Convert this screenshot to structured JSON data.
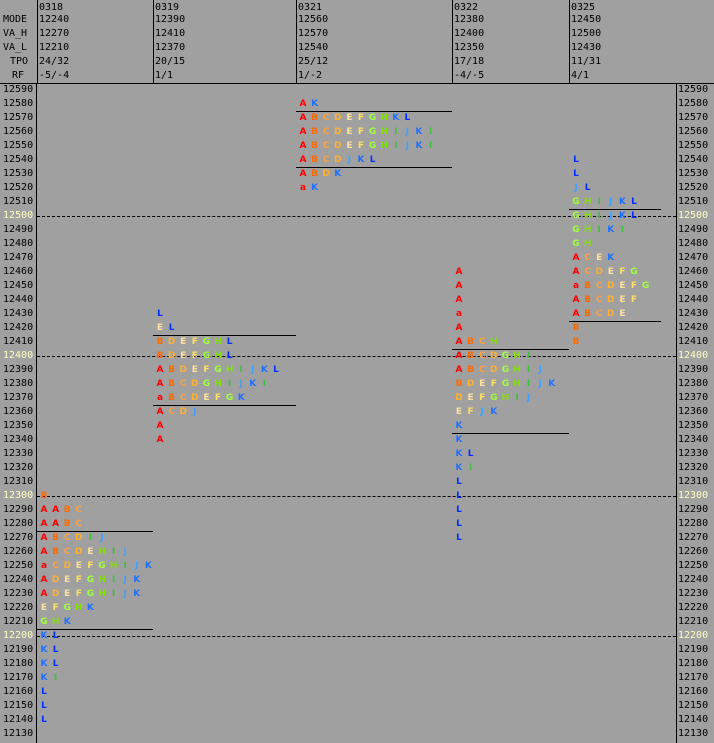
{
  "header": {
    "row_labels": [
      "MODE",
      "VA_H",
      "VA_L",
      "TPO",
      "RF"
    ],
    "sessions": [
      {
        "date": "0318",
        "mode": "12240",
        "va_h": "12270",
        "va_l": "12210",
        "tpo": "24/32",
        "rf": "-5/-4"
      },
      {
        "date": "0319",
        "mode": "12390",
        "va_h": "12410",
        "va_l": "12370",
        "tpo": "20/15",
        "rf": "1/1"
      },
      {
        "date": "0321",
        "mode": "12560",
        "va_h": "12570",
        "va_l": "12540",
        "tpo": "25/12",
        "rf": "1/-2"
      },
      {
        "date": "0322",
        "mode": "12380",
        "va_h": "12400",
        "va_l": "12350",
        "tpo": "17/18",
        "rf": "-4/-5"
      },
      {
        "date": "0325",
        "mode": "12450",
        "va_h": "12500",
        "va_l": "12430",
        "tpo": "11/31",
        "rf": "4/1"
      }
    ]
  },
  "prices": [
    "12590",
    "12580",
    "12570",
    "12560",
    "12550",
    "12540",
    "12530",
    "12520",
    "12510",
    "12500",
    "12490",
    "12480",
    "12470",
    "12460",
    "12450",
    "12440",
    "12430",
    "12420",
    "12410",
    "12400",
    "12390",
    "12380",
    "12370",
    "12360",
    "12350",
    "12340",
    "12330",
    "12320",
    "12310",
    "12300",
    "12290",
    "12280",
    "12270",
    "12260",
    "12250",
    "12240",
    "12230",
    "12220",
    "12210",
    "12200",
    "12190",
    "12180",
    "12170",
    "12160",
    "12150",
    "12140",
    "12130"
  ],
  "major_prices": [
    "12500",
    "12400",
    "12300",
    "12200"
  ],
  "colors": {
    "A": "#ff0000",
    "a": "#ff0000",
    "B": "#ff6a00",
    "C": "#ffa040",
    "D": "#ffb030",
    "E": "#ffe0a0",
    "F": "#ffe060",
    "G": "#a0ff40",
    "H": "#80e000",
    "I": "#40c040",
    "J": "#40a0ff",
    "K": "#2070ff",
    "L": "#0030ff"
  },
  "profiles": [
    {
      "session": "0318",
      "rows": {
        "12300": "B",
        "12290": "AABC",
        "12280": "AABC",
        "12270": "ABCDIJ",
        "12260": "ABCDEHIJ",
        "12250": "aCDEFGHIJK",
        "12240": "ADEFGHIJK",
        "12230": "ADEFGHIJK",
        "12220": "EFGHK",
        "12210": "GHK",
        "12200": "KL",
        "12190": "KL",
        "12180": "KL",
        "12170": "KI",
        "12160": "L",
        "12150": "L",
        "12140": "L"
      }
    },
    {
      "session": "0319",
      "rows": {
        "12430": "L",
        "12420": "EL",
        "12410": "BDEFGHL",
        "12400": "BDEFGHL",
        "12390": "ABDEFGHIJKL",
        "12380": "ABCDGHIJKI",
        "12370": "aBCDEFGK",
        "12360": "ACDJ",
        "12350": "A",
        "12340": "A"
      }
    },
    {
      "session": "0321",
      "rows": {
        "12580": "AK",
        "12570": "ABCDEFGHKL",
        "12560": "ABCDEFGHIJKI",
        "12550": "ABCDEFGHIJKI",
        "12540": "ABCDJKL",
        "12530": "ABDK",
        "12520": "aK"
      }
    },
    {
      "session": "0322",
      "rows": {
        "12460": "A",
        "12450": "A",
        "12440": "A",
        "12430": "a",
        "12420": "A",
        "12410": "ABCH",
        "12400": "ABCDGHI",
        "12390": "ABCDGHIJ",
        "12380": "BDEFGHIJK",
        "12370": "DEFGHIJ",
        "12360": "EFJK",
        "12350": "K",
        "12340": "K",
        "12330": "KL",
        "12320": "KI",
        "12310": "L",
        "12300": "L",
        "12290": "L",
        "12280": "L",
        "12270": "L"
      }
    },
    {
      "session": "0325",
      "rows": {
        "12540": "L",
        "12530": "L",
        "12520": "JL",
        "12510": "GHIJKL",
        "12500": "GHIJKL",
        "12490": "GHIKI",
        "12480": "GH",
        "12470": "ACEK",
        "12460": "ACDEFG",
        "12450": "aBCDEFG",
        "12440": "ABCDEF",
        "12430": "ABCDE",
        "12420": "B",
        "12410": "B"
      }
    }
  ]
}
